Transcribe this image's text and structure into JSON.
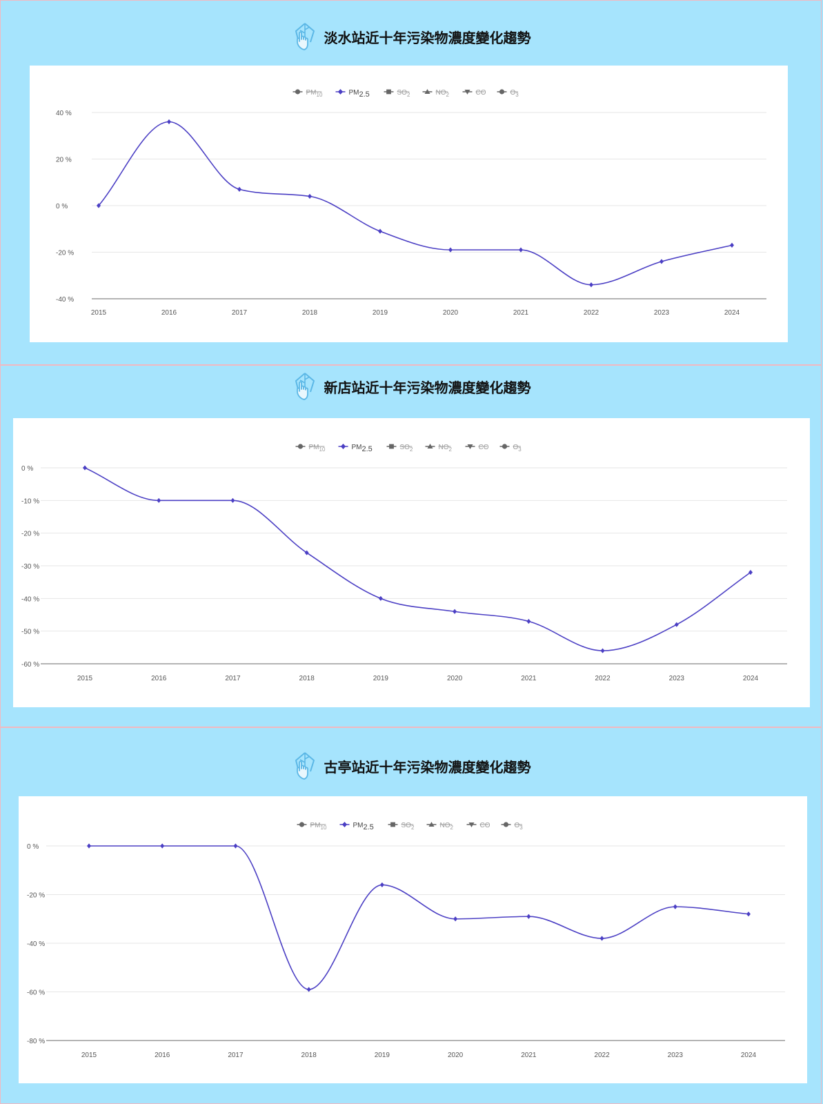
{
  "legend": [
    {
      "name": "PM",
      "sub": "10",
      "hidden": true,
      "symbol": "circle"
    },
    {
      "name": "PM",
      "sub": "2.5",
      "hidden": false,
      "symbol": "diamond"
    },
    {
      "name": "SO",
      "sub": "2",
      "hidden": true,
      "symbol": "square"
    },
    {
      "name": "NO",
      "sub": "2",
      "hidden": true,
      "symbol": "triangle"
    },
    {
      "name": "CO",
      "sub": "",
      "hidden": true,
      "symbol": "triangle-down"
    },
    {
      "name": "O",
      "sub": "3",
      "hidden": true,
      "symbol": "circle"
    }
  ],
  "colors": {
    "series": "#4b3fc4",
    "hidden_legend": "#8a8a8a",
    "grid": "#e6e6e6",
    "axis": "#888888"
  },
  "chart_data": [
    {
      "type": "line",
      "title": "淡水站近十年污染物濃度變化趨勢",
      "categories": [
        "2015",
        "2016",
        "2017",
        "2018",
        "2019",
        "2020",
        "2021",
        "2022",
        "2023",
        "2024"
      ],
      "series": [
        {
          "name": "PM2.5",
          "values": [
            0,
            36,
            7,
            4,
            -11,
            -19,
            -19,
            -34,
            -24,
            -17
          ]
        }
      ],
      "ylim": [
        -40,
        40
      ],
      "yticks": [
        40,
        20,
        0,
        -20,
        -40
      ],
      "ytick_labels": [
        "40 %",
        "20 %",
        "0 %",
        "-20 %",
        "-40 %"
      ],
      "grid": true,
      "legend_position": "top"
    },
    {
      "type": "line",
      "title": "新店站近十年污染物濃度變化趨勢",
      "categories": [
        "2015",
        "2016",
        "2017",
        "2018",
        "2019",
        "2020",
        "2021",
        "2022",
        "2023",
        "2024"
      ],
      "series": [
        {
          "name": "PM2.5",
          "values": [
            0,
            -10,
            -10,
            -26,
            -40,
            -44,
            -47,
            -56,
            -48,
            -32
          ]
        }
      ],
      "ylim": [
        -60,
        0
      ],
      "yticks": [
        0,
        -10,
        -20,
        -30,
        -40,
        -50,
        -60
      ],
      "ytick_labels": [
        "0 %",
        "-10 %",
        "-20 %",
        "-30 %",
        "-40 %",
        "-50 %",
        "-60 %"
      ],
      "grid": true,
      "legend_position": "top"
    },
    {
      "type": "line",
      "title": "古亭站近十年污染物濃度變化趨勢",
      "categories": [
        "2015",
        "2016",
        "2017",
        "2018",
        "2019",
        "2020",
        "2021",
        "2022",
        "2023",
        "2024"
      ],
      "series": [
        {
          "name": "PM2.5",
          "values": [
            0,
            0,
            0,
            -59,
            -16,
            -30,
            -29,
            -38,
            -25,
            -28
          ]
        }
      ],
      "ylim": [
        -80,
        0
      ],
      "yticks": [
        0,
        -20,
        -40,
        -60,
        -80
      ],
      "ytick_labels": [
        "0 %",
        "-20 %",
        "-40 %",
        "-60 %",
        "-80 %"
      ],
      "grid": true,
      "legend_position": "top"
    }
  ]
}
